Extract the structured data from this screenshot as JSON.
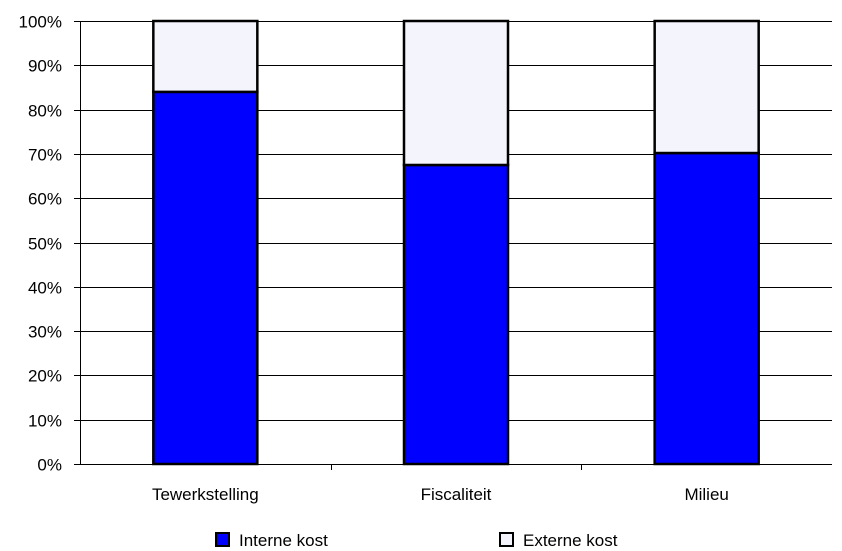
{
  "chart_data": {
    "type": "bar",
    "stacked": true,
    "percent": true,
    "categories": [
      "Tewerkstelling",
      "Fiscaliteit",
      "Milieu"
    ],
    "series": [
      {
        "name": "Interne kost",
        "values": [
          84,
          67.5,
          70.2
        ],
        "color": "#0000ff"
      },
      {
        "name": "Externe kost",
        "values": [
          16,
          32.5,
          29.8
        ],
        "color": "#f4f4fc"
      }
    ],
    "y_tick_labels": [
      "0%",
      "10%",
      "20%",
      "30%",
      "40%",
      "50%",
      "60%",
      "70%",
      "80%",
      "90%",
      "100%"
    ],
    "ylim": [
      0,
      100
    ],
    "grid": true,
    "legend_position": "bottom"
  }
}
